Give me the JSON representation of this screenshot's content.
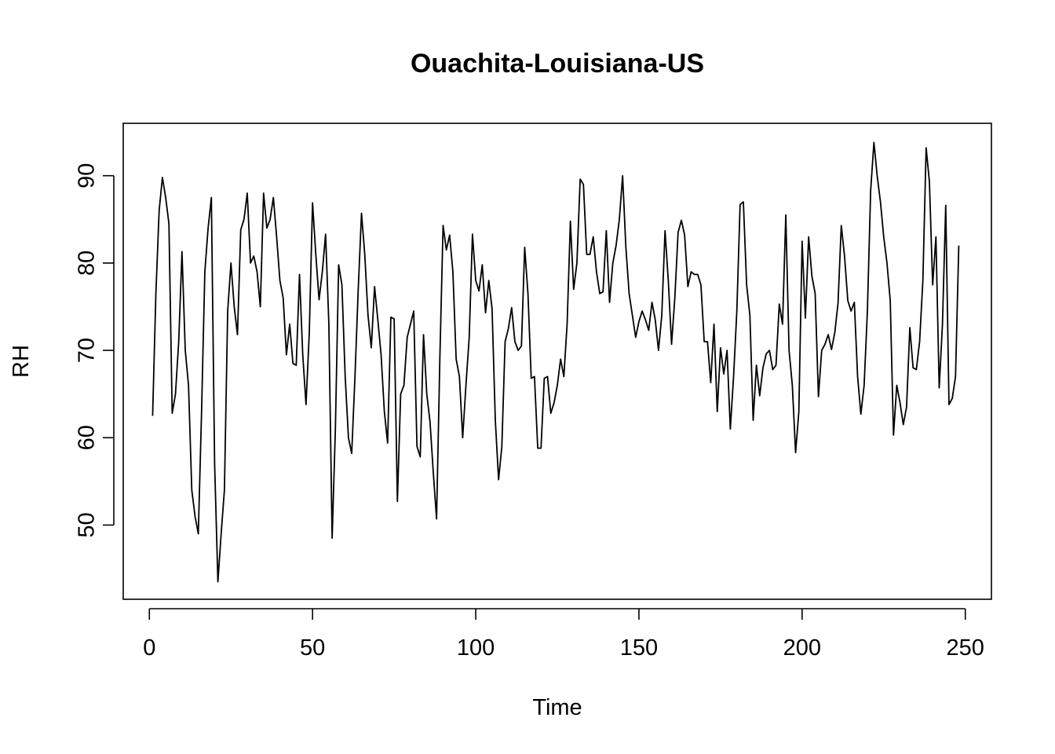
{
  "chart_data": {
    "type": "line",
    "title": "Ouachita-Louisiana-US",
    "xlabel": "Time",
    "ylabel": "RH",
    "xlim": [
      -8,
      258
    ],
    "ylim": [
      41.5,
      96
    ],
    "x_ticks": [
      0,
      50,
      100,
      150,
      200,
      250
    ],
    "y_ticks": [
      50,
      60,
      70,
      80,
      90
    ],
    "grid": false,
    "legend": "none",
    "line_color": "#000000",
    "series": [
      {
        "x": [
          1,
          2,
          3,
          4,
          5,
          6,
          7,
          8,
          9,
          10,
          11,
          12,
          13,
          14,
          15,
          16,
          17,
          18,
          19,
          20,
          21,
          22,
          23,
          24,
          25,
          26,
          27,
          28,
          29,
          30,
          31,
          32,
          33,
          34,
          35,
          36,
          37,
          38,
          39,
          40,
          41,
          42,
          43,
          44,
          45,
          46,
          47,
          48,
          49,
          50,
          51,
          52,
          53,
          54,
          55,
          56,
          57,
          58,
          59,
          60,
          61,
          62,
          63,
          64,
          65,
          66,
          67,
          68,
          69,
          70,
          71,
          72,
          73,
          74,
          75,
          76,
          77,
          78,
          79,
          80,
          81,
          82,
          83,
          84,
          85,
          86,
          87,
          88,
          89,
          90,
          91,
          92,
          93,
          94,
          95,
          96,
          97,
          98,
          99,
          100,
          101,
          102,
          103,
          104,
          105,
          106,
          107,
          108,
          109,
          110,
          111,
          112,
          113,
          114,
          115,
          116,
          117,
          118,
          119,
          120,
          121,
          122,
          123,
          124,
          125,
          126,
          127,
          128,
          129,
          130,
          131,
          132,
          133,
          134,
          135,
          136,
          137,
          138,
          139,
          140,
          141,
          142,
          143,
          144,
          145,
          146,
          147,
          148,
          149,
          150,
          151,
          152,
          153,
          154,
          155,
          156,
          157,
          158,
          159,
          160,
          161,
          162,
          163,
          164,
          165,
          166,
          167,
          168,
          169,
          170,
          171,
          172,
          173,
          174,
          175,
          176,
          177,
          178,
          179,
          180,
          181,
          182,
          183,
          184,
          185,
          186,
          187,
          188,
          189,
          190,
          191,
          192,
          193,
          194,
          195,
          196,
          197,
          198,
          199,
          200,
          201,
          202,
          203,
          204,
          205,
          206,
          207,
          208,
          209,
          210,
          211,
          212,
          213,
          214,
          215,
          216,
          217,
          218,
          219,
          220,
          221,
          222,
          223,
          224,
          225,
          226,
          227,
          228,
          229,
          230,
          231,
          232,
          233,
          234,
          235,
          236,
          237,
          238,
          239,
          240,
          241,
          242,
          243,
          244,
          245,
          246,
          247,
          248
        ],
        "values": [
          62.5,
          76.5,
          86.0,
          89.8,
          87.5,
          84.5,
          62.8,
          65.0,
          71.0,
          81.3,
          70.0,
          66.0,
          54.0,
          51.0,
          49.0,
          63.0,
          79.0,
          84.0,
          87.5,
          57.0,
          43.5,
          49.0,
          54.0,
          74.5,
          80.0,
          75.0,
          71.8,
          83.8,
          85.0,
          88.0,
          80.0,
          80.8,
          79.0,
          75.0,
          88.0,
          84.0,
          85.0,
          87.5,
          83.0,
          78.0,
          76.0,
          69.5,
          73.0,
          68.5,
          68.3,
          78.7,
          69.5,
          63.8,
          72.0,
          86.9,
          81.0,
          75.8,
          79.0,
          83.3,
          73.0,
          48.5,
          61.0,
          79.8,
          77.5,
          67.0,
          60.0,
          58.2,
          67.0,
          77.0,
          85.7,
          81.0,
          74.0,
          70.3,
          77.3,
          73.5,
          69.5,
          63.0,
          59.4,
          73.8,
          73.6,
          52.7,
          65.0,
          66.0,
          71.5,
          73.0,
          74.5,
          59.0,
          57.8,
          71.8,
          65.0,
          61.8,
          56.0,
          50.7,
          69.0,
          84.3,
          81.5,
          83.2,
          79.0,
          69.0,
          67.0,
          60.0,
          66.0,
          71.5,
          83.3,
          78.0,
          76.8,
          79.8,
          74.3,
          78.0,
          74.8,
          62.0,
          55.2,
          59.0,
          71.0,
          72.5,
          74.9,
          71.0,
          70.0,
          70.5,
          81.8,
          76.5,
          66.8,
          67.0,
          58.8,
          58.8,
          66.8,
          67.0,
          62.8,
          64.0,
          66.0,
          69.0,
          67.0,
          73.0,
          84.8,
          77.0,
          80.0,
          89.6,
          89.0,
          81.0,
          81.0,
          83.0,
          79.0,
          76.5,
          76.7,
          83.7,
          75.5,
          80.0,
          82.0,
          85.0,
          90.0,
          81.8,
          76.5,
          74.0,
          71.5,
          73.3,
          74.5,
          73.5,
          72.3,
          75.5,
          73.5,
          70.0,
          74.0,
          83.7,
          78.0,
          70.7,
          76.0,
          83.5,
          84.9,
          83.2,
          77.3,
          79.0,
          78.7,
          78.7,
          77.5,
          71.0,
          71.0,
          66.3,
          73.0,
          63.0,
          70.3,
          67.3,
          70.0,
          61.0,
          67.0,
          74.5,
          86.7,
          87.0,
          77.5,
          74.0,
          62.0,
          68.3,
          64.8,
          68.0,
          69.6,
          70.0,
          67.8,
          68.3,
          75.3,
          73.0,
          85.5,
          70.0,
          66.0,
          58.3,
          63.0,
          82.5,
          73.7,
          83.0,
          78.5,
          76.5,
          64.7,
          70.0,
          70.7,
          71.8,
          70.1,
          72.0,
          75.4,
          84.3,
          80.8,
          75.7,
          74.5,
          75.5,
          67.0,
          62.7,
          66.0,
          74.5,
          88.3,
          93.8,
          90.0,
          87.0,
          83.0,
          80.0,
          75.7,
          60.3,
          66.0,
          64.0,
          61.5,
          63.5,
          72.6,
          68.0,
          67.8,
          71.0,
          78.0,
          93.2,
          89.3,
          77.5,
          83.0,
          65.7,
          73.0,
          86.6,
          63.8,
          64.5,
          67.0,
          82.0
        ]
      }
    ]
  }
}
